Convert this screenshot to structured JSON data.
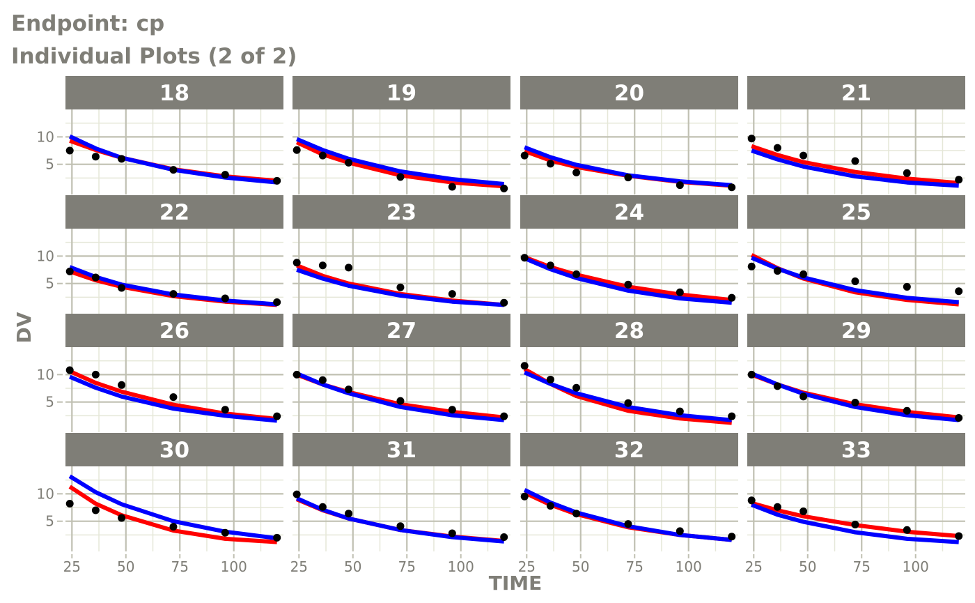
{
  "title": "Endpoint:  cp",
  "subtitle": "Individual Plots (2 of 2)",
  "colors": {
    "strip_bg": "#7f7e77",
    "strip_text": "#ffffff",
    "grid_major": "#c0c0b2",
    "grid_minor": "#e5e7d8",
    "text": "#7f7e77",
    "observed": "#000000",
    "red_line": "#ff0000",
    "blue_line": "#0000ff"
  },
  "chart_data": {
    "type": "line",
    "xlabel": "TIME",
    "ylabel": "DV",
    "x_ticks": [
      25,
      50,
      75,
      100
    ],
    "y_ticks": [
      5,
      10
    ],
    "xlim": [
      22,
      123
    ],
    "ylim": [
      -0.5,
      15
    ],
    "layout": "4 x 4 facets",
    "x": [
      24,
      36,
      48,
      72,
      96,
      120
    ],
    "series_style": [
      {
        "key": "obs",
        "mark": "point",
        "color": "#000000"
      },
      {
        "key": "red",
        "mark": "line",
        "color": "#ff0000"
      },
      {
        "key": "blue",
        "mark": "line",
        "color": "#0000ff"
      }
    ],
    "panels": [
      {
        "id": "18",
        "obs": [
          7.5,
          6.4,
          6.0,
          4.0,
          3.1,
          2.0
        ],
        "red": [
          9.3,
          7.6,
          6.2,
          4.1,
          2.8,
          2.0
        ],
        "blue": [
          10.1,
          7.9,
          6.2,
          4.0,
          2.6,
          1.7
        ]
      },
      {
        "id": "19",
        "obs": [
          7.6,
          6.6,
          5.3,
          2.7,
          0.9,
          0.6
        ],
        "red": [
          9.0,
          6.8,
          5.3,
          3.0,
          1.7,
          1.0
        ],
        "blue": [
          9.6,
          7.6,
          6.0,
          3.7,
          2.3,
          1.4
        ]
      },
      {
        "id": "20",
        "obs": [
          6.6,
          5.1,
          3.5,
          2.6,
          1.2,
          0.8
        ],
        "red": [
          7.4,
          5.7,
          4.5,
          2.9,
          1.8,
          1.1
        ],
        "blue": [
          8.1,
          6.3,
          4.9,
          3.0,
          1.9,
          1.2
        ]
      },
      {
        "id": "21",
        "obs": [
          9.7,
          8.0,
          6.6,
          5.6,
          3.4,
          2.2
        ],
        "red": [
          8.3,
          6.7,
          5.4,
          3.6,
          2.4,
          1.6
        ],
        "blue": [
          7.5,
          5.9,
          4.6,
          2.8,
          1.7,
          1.1
        ]
      },
      {
        "id": "22",
        "obs": [
          7.2,
          6.1,
          4.2,
          3.1,
          2.3,
          1.6
        ],
        "red": [
          7.2,
          5.6,
          4.4,
          2.7,
          1.7,
          1.1
        ],
        "blue": [
          8.0,
          6.2,
          4.8,
          3.0,
          1.9,
          1.2
        ]
      },
      {
        "id": "23",
        "obs": [
          8.8,
          8.3,
          7.9,
          4.3,
          3.1,
          1.5
        ],
        "red": [
          8.3,
          6.4,
          5.0,
          3.1,
          1.9,
          1.1
        ],
        "blue": [
          7.5,
          5.9,
          4.6,
          2.8,
          1.7,
          1.1
        ]
      },
      {
        "id": "24",
        "obs": [
          9.7,
          8.3,
          6.7,
          4.8,
          3.4,
          2.4
        ],
        "red": [
          9.8,
          8.0,
          6.6,
          4.4,
          3.0,
          2.0
        ],
        "blue": [
          9.6,
          7.6,
          6.0,
          3.7,
          2.3,
          1.5
        ]
      },
      {
        "id": "25",
        "obs": [
          8.1,
          7.3,
          6.7,
          5.4,
          4.4,
          3.6
        ],
        "red": [
          10.2,
          7.8,
          5.9,
          3.4,
          2.0,
          1.2
        ],
        "blue": [
          9.7,
          7.7,
          6.1,
          3.8,
          2.4,
          1.6
        ]
      },
      {
        "id": "26",
        "obs": [
          10.8,
          10.0,
          8.1,
          5.9,
          3.6,
          2.4
        ],
        "red": [
          10.6,
          8.5,
          6.9,
          4.5,
          2.9,
          1.9
        ],
        "blue": [
          9.6,
          7.6,
          6.0,
          3.8,
          2.5,
          1.6
        ]
      },
      {
        "id": "27",
        "obs": [
          10.0,
          9.0,
          7.3,
          5.2,
          3.6,
          2.4
        ],
        "red": [
          10.0,
          8.2,
          6.8,
          4.6,
          3.2,
          2.2
        ],
        "blue": [
          10.2,
          8.2,
          6.6,
          4.1,
          2.6,
          1.7
        ]
      },
      {
        "id": "28",
        "obs": [
          11.6,
          9.1,
          7.6,
          4.8,
          3.3,
          2.4
        ],
        "red": [
          11.0,
          8.3,
          6.1,
          3.4,
          2.0,
          1.2
        ],
        "blue": [
          10.4,
          8.3,
          6.6,
          4.1,
          2.6,
          1.7
        ]
      },
      {
        "id": "29",
        "obs": [
          10.0,
          7.9,
          6.0,
          4.9,
          3.4,
          2.1
        ],
        "red": [
          10.0,
          8.2,
          6.7,
          4.6,
          3.2,
          2.2
        ],
        "blue": [
          10.2,
          8.2,
          6.5,
          4.1,
          2.6,
          1.7
        ]
      },
      {
        "id": "30",
        "obs": [
          8.2,
          7.0,
          5.6,
          4.0,
          2.9,
          2.0
        ],
        "red": [
          11.3,
          8.2,
          6.1,
          3.3,
          1.8,
          1.2
        ],
        "blue": [
          13.2,
          10.3,
          8.1,
          5.0,
          3.1,
          1.9
        ]
      },
      {
        "id": "31",
        "obs": [
          9.9,
          7.6,
          6.4,
          4.1,
          2.8,
          2.1
        ],
        "red": [
          9.0,
          7.0,
          5.5,
          3.4,
          2.2,
          1.4
        ],
        "blue": [
          9.2,
          7.1,
          5.5,
          3.4,
          2.1,
          1.3
        ]
      },
      {
        "id": "32",
        "obs": [
          9.5,
          7.8,
          6.4,
          4.5,
          3.2,
          2.2
        ],
        "red": [
          10.2,
          8.0,
          6.3,
          3.9,
          2.5,
          1.6
        ],
        "blue": [
          10.7,
          8.4,
          6.6,
          4.1,
          2.5,
          1.6
        ]
      },
      {
        "id": "33",
        "obs": [
          8.8,
          7.6,
          6.8,
          4.4,
          3.4,
          2.3
        ],
        "red": [
          8.3,
          7.0,
          5.9,
          4.3,
          3.1,
          2.3
        ],
        "blue": [
          8.0,
          6.2,
          4.9,
          3.0,
          1.8,
          1.2
        ]
      }
    ]
  }
}
